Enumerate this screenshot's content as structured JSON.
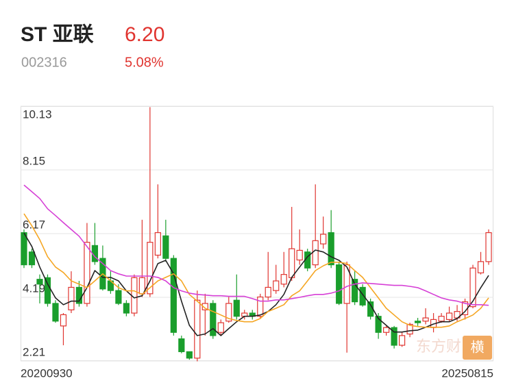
{
  "header": {
    "name": "ST 亚联",
    "price": "6.20",
    "code": "002316",
    "change": "5.08%"
  },
  "watermark": "东方财",
  "button": "横",
  "chart_data": {
    "type": "candlestick",
    "categories": [
      "20200930",
      null,
      null,
      null,
      null,
      null,
      null,
      null,
      null,
      null,
      null,
      null,
      null,
      null,
      null,
      null,
      null,
      null,
      null,
      null,
      null,
      null,
      null,
      null,
      null,
      null,
      null,
      null,
      null,
      null,
      null,
      null,
      null,
      null,
      null,
      null,
      null,
      null,
      null,
      null,
      null,
      null,
      null,
      null,
      null,
      null,
      null,
      null,
      null,
      null,
      null,
      null,
      null,
      null,
      null,
      null,
      null,
      null,
      null,
      "20250815"
    ],
    "open": [
      6.2,
      5.6,
      4.75,
      4.8,
      4.0,
      3.3,
      3.8,
      4.5,
      4.0,
      5.8,
      5.4,
      4.7,
      4.4,
      4.0,
      3.7,
      4.3,
      4.3,
      5.5,
      6.1,
      5.4,
      2.9,
      2.5,
      2.3,
      3.8,
      4.0,
      3.1,
      3.45,
      4.1,
      3.6,
      3.7,
      3.6,
      4.2,
      4.4,
      4.6,
      4.8,
      5.35,
      5.6,
      5.2,
      5.85,
      6.2,
      5.2,
      4.0,
      4.75,
      4.5,
      4.05,
      3.6,
      3.1,
      3.25,
      2.7,
      3.05,
      3.45,
      3.45,
      3.25,
      3.45,
      3.5,
      3.55,
      3.65,
      3.9,
      4.95,
      5.3
    ],
    "high": [
      6.3,
      5.7,
      4.9,
      4.9,
      4.1,
      3.7,
      5.0,
      4.7,
      6.5,
      6.5,
      5.8,
      5.0,
      4.6,
      4.1,
      4.9,
      6.6,
      10.1,
      7.7,
      6.6,
      5.5,
      3.0,
      2.5,
      4.4,
      4.3,
      4.1,
      3.5,
      4.2,
      4.9,
      3.8,
      3.8,
      4.3,
      5.6,
      5.2,
      5.6,
      7.0,
      6.3,
      5.7,
      7.7,
      6.7,
      6.9,
      5.3,
      5.3,
      5.0,
      4.6,
      4.15,
      3.7,
      3.3,
      3.3,
      3.1,
      3.4,
      3.55,
      3.85,
      3.7,
      3.7,
      3.9,
      3.95,
      4.15,
      5.2,
      5.6,
      6.3
    ],
    "low": [
      5.1,
      5.1,
      4.0,
      3.9,
      3.4,
      2.7,
      3.7,
      3.9,
      3.9,
      5.2,
      4.4,
      4.3,
      3.95,
      3.6,
      3.6,
      4.2,
      4.2,
      5.4,
      5.3,
      3.0,
      2.45,
      2.25,
      2.2,
      3.0,
      2.9,
      3.0,
      3.4,
      3.5,
      3.5,
      3.5,
      3.55,
      4.1,
      4.3,
      4.5,
      4.7,
      5.2,
      5.0,
      5.1,
      5.7,
      5.1,
      3.95,
      2.47,
      3.95,
      3.9,
      3.5,
      2.9,
      3.0,
      2.6,
      2.65,
      2.95,
      3.3,
      3.35,
      3.1,
      3.4,
      3.45,
      3.45,
      3.5,
      3.85,
      4.9,
      5.2
    ],
    "close": [
      5.2,
      5.2,
      4.6,
      4.0,
      3.45,
      3.65,
      4.5,
      4.0,
      5.9,
      5.3,
      4.45,
      4.4,
      4.0,
      3.7,
      4.8,
      4.8,
      5.9,
      6.2,
      5.4,
      3.1,
      2.5,
      2.3,
      4.1,
      4.0,
      3.0,
      3.4,
      4.0,
      3.6,
      3.7,
      3.6,
      4.2,
      4.5,
      4.7,
      4.9,
      5.7,
      5.65,
      5.1,
      5.95,
      6.15,
      5.2,
      4.0,
      5.2,
      4.05,
      3.95,
      3.6,
      3.1,
      3.25,
      2.7,
      3.0,
      3.35,
      3.4,
      3.55,
      3.5,
      3.6,
      3.7,
      3.75,
      4.05,
      5.1,
      5.3,
      6.2
    ],
    "up_color": "#e0342f",
    "down_color": "#1a9e2c",
    "series": [
      {
        "color": "#222222",
        "values": [
          6.19,
          5.77,
          5.13,
          4.6,
          4.17,
          3.96,
          4.07,
          4.07,
          4.49,
          5.02,
          4.81,
          4.81,
          4.7,
          4.39,
          4.17,
          4.24,
          4.7,
          5.24,
          5.34,
          4.92,
          4.07,
          3.32,
          3.0,
          3.05,
          3.22,
          3.0,
          3.22,
          3.43,
          3.6,
          3.6,
          3.64,
          3.75,
          3.96,
          4.28,
          4.81,
          5.13,
          5.45,
          5.66,
          5.6,
          5.45,
          5.34,
          5.13,
          4.6,
          4.28,
          3.96,
          3.53,
          3.32,
          3.11,
          3.11,
          3.15,
          3.17,
          3.26,
          3.36,
          3.43,
          3.43,
          3.53,
          3.75,
          4.07,
          4.49,
          4.87
        ]
      },
      {
        "color": "#f5a623",
        "values": [
          6.79,
          6.41,
          5.98,
          5.45,
          5.13,
          4.96,
          4.7,
          4.6,
          4.49,
          4.7,
          4.92,
          4.7,
          4.49,
          4.39,
          4.39,
          4.28,
          4.49,
          4.7,
          4.81,
          4.92,
          4.7,
          4.28,
          4.07,
          3.85,
          3.75,
          3.64,
          3.53,
          3.47,
          3.43,
          3.43,
          3.53,
          3.75,
          3.85,
          3.96,
          4.24,
          4.39,
          4.7,
          5.02,
          5.17,
          5.28,
          5.28,
          5.24,
          5.02,
          4.81,
          4.49,
          4.17,
          3.85,
          3.64,
          3.43,
          3.32,
          3.28,
          3.26,
          3.26,
          3.26,
          3.3,
          3.43,
          3.53,
          3.64,
          3.85,
          4.17
        ]
      },
      {
        "color": "#d63fd6",
        "values": [
          7.68,
          7.47,
          7.26,
          6.94,
          6.73,
          6.51,
          6.3,
          6.09,
          5.77,
          5.45,
          5.24,
          5.02,
          4.92,
          4.85,
          4.85,
          4.85,
          4.85,
          4.81,
          4.7,
          4.49,
          4.39,
          4.32,
          4.28,
          4.26,
          4.24,
          4.24,
          4.22,
          4.22,
          4.22,
          4.15,
          4.07,
          4.07,
          4.11,
          4.11,
          4.15,
          4.19,
          4.24,
          4.28,
          4.28,
          4.32,
          4.39,
          4.53,
          4.6,
          4.64,
          4.62,
          4.6,
          4.58,
          4.56,
          4.56,
          4.53,
          4.49,
          4.39,
          4.28,
          4.17,
          4.11,
          4.07,
          4.0,
          3.96,
          3.96,
          3.94
        ]
      }
    ],
    "ylim": [
      2.21,
      10.13
    ],
    "yticks": [
      2.21,
      4.19,
      6.17,
      8.15,
      10.13
    ],
    "grid": true
  }
}
